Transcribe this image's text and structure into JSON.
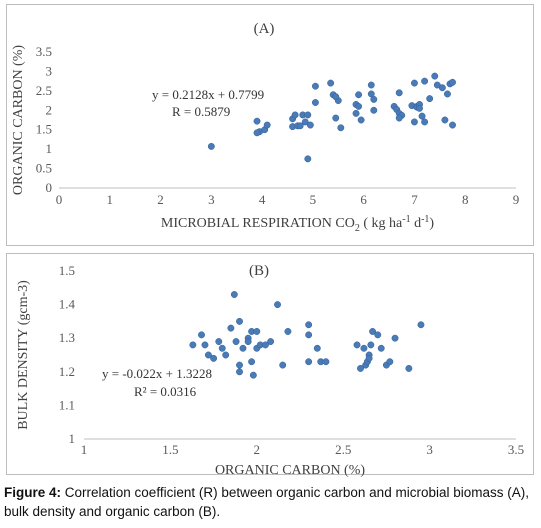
{
  "chart_data": [
    {
      "type": "scatter",
      "title": "(A)",
      "xlabel": "MICROBIAL RESPIRATION CO",
      "xlabel_sub": "2",
      "xlabel_unit": " ( kg ha",
      "xlabel_sup1": "-1",
      "xlabel_mid": " d",
      "xlabel_sup2": "-1",
      "xlabel_end": ")",
      "ylabel": "ORGANIC CARBON (%)",
      "xlim": [
        0,
        9
      ],
      "ylim": [
        0,
        3.5
      ],
      "xticks": [
        "0",
        "1",
        "2",
        "3",
        "4",
        "5",
        "6",
        "7",
        "8",
        "9"
      ],
      "yticks": [
        "0",
        "0.5",
        "1",
        "1.5",
        "2",
        "2.5",
        "3",
        "3.5"
      ],
      "annotations": [
        "y = 0.2128x + 0.7799",
        "R = 0.5879"
      ],
      "marker_color": "#4a7bb7",
      "points": [
        {
          "x": 3.0,
          "y": 1.07
        },
        {
          "x": 3.9,
          "y": 1.72
        },
        {
          "x": 3.95,
          "y": 1.45
        },
        {
          "x": 4.05,
          "y": 1.5
        },
        {
          "x": 4.1,
          "y": 1.62
        },
        {
          "x": 3.9,
          "y": 1.42
        },
        {
          "x": 4.6,
          "y": 1.78
        },
        {
          "x": 4.6,
          "y": 1.58
        },
        {
          "x": 4.65,
          "y": 1.88
        },
        {
          "x": 4.7,
          "y": 1.6
        },
        {
          "x": 4.75,
          "y": 1.6
        },
        {
          "x": 4.8,
          "y": 1.88
        },
        {
          "x": 4.85,
          "y": 1.7
        },
        {
          "x": 4.9,
          "y": 1.88
        },
        {
          "x": 4.95,
          "y": 1.62
        },
        {
          "x": 4.9,
          "y": 0.75
        },
        {
          "x": 5.05,
          "y": 2.2
        },
        {
          "x": 5.05,
          "y": 2.62
        },
        {
          "x": 5.35,
          "y": 2.7
        },
        {
          "x": 5.4,
          "y": 2.4
        },
        {
          "x": 5.45,
          "y": 1.8
        },
        {
          "x": 5.5,
          "y": 2.25
        },
        {
          "x": 5.55,
          "y": 1.55
        },
        {
          "x": 5.85,
          "y": 1.92
        },
        {
          "x": 5.85,
          "y": 2.15
        },
        {
          "x": 5.9,
          "y": 2.1
        },
        {
          "x": 5.9,
          "y": 2.4
        },
        {
          "x": 5.95,
          "y": 1.75
        },
        {
          "x": 6.15,
          "y": 2.65
        },
        {
          "x": 6.15,
          "y": 2.42
        },
        {
          "x": 6.2,
          "y": 2.28
        },
        {
          "x": 6.2,
          "y": 2.0
        },
        {
          "x": 6.6,
          "y": 2.1
        },
        {
          "x": 6.65,
          "y": 2.02
        },
        {
          "x": 6.7,
          "y": 2.45
        },
        {
          "x": 6.7,
          "y": 1.92
        },
        {
          "x": 6.75,
          "y": 1.87
        },
        {
          "x": 6.95,
          "y": 2.12
        },
        {
          "x": 7.0,
          "y": 2.7
        },
        {
          "x": 7.0,
          "y": 1.7
        },
        {
          "x": 7.05,
          "y": 2.1
        },
        {
          "x": 7.05,
          "y": 2.08
        },
        {
          "x": 7.1,
          "y": 2.15
        },
        {
          "x": 7.1,
          "y": 2.05
        },
        {
          "x": 7.15,
          "y": 1.85
        },
        {
          "x": 7.2,
          "y": 2.75
        },
        {
          "x": 7.2,
          "y": 1.7
        },
        {
          "x": 7.3,
          "y": 2.3
        },
        {
          "x": 7.4,
          "y": 2.88
        },
        {
          "x": 7.45,
          "y": 2.65
        },
        {
          "x": 7.55,
          "y": 2.58
        },
        {
          "x": 7.6,
          "y": 1.75
        },
        {
          "x": 7.65,
          "y": 2.42
        },
        {
          "x": 7.7,
          "y": 2.68
        },
        {
          "x": 7.75,
          "y": 2.72
        },
        {
          "x": 7.75,
          "y": 1.62
        },
        {
          "x": 6.7,
          "y": 1.8
        },
        {
          "x": 5.45,
          "y": 2.35
        }
      ]
    },
    {
      "type": "scatter",
      "title": "(B)",
      "xlabel": "ORGANIC CARBON (%)",
      "ylabel": "BULK DENSITY (gcm-3)",
      "xlim": [
        1,
        3.5
      ],
      "ylim": [
        1,
        1.5
      ],
      "xticks": [
        "1",
        "1.5",
        "2",
        "2.5",
        "3",
        "3.5"
      ],
      "yticks": [
        "1",
        "1.1",
        "1.2",
        "1.3",
        "1.4",
        "1.5"
      ],
      "annotations": [
        "y = -0.022x + 1.3228",
        "R² = 0.0316"
      ],
      "marker_color": "#4a7bb7",
      "points": [
        {
          "x": 1.63,
          "y": 1.28
        },
        {
          "x": 1.68,
          "y": 1.31
        },
        {
          "x": 1.7,
          "y": 1.28
        },
        {
          "x": 1.72,
          "y": 1.25
        },
        {
          "x": 1.75,
          "y": 1.24
        },
        {
          "x": 1.78,
          "y": 1.29
        },
        {
          "x": 1.8,
          "y": 1.27
        },
        {
          "x": 1.82,
          "y": 1.25
        },
        {
          "x": 1.85,
          "y": 1.33
        },
        {
          "x": 1.87,
          "y": 1.43
        },
        {
          "x": 1.88,
          "y": 1.29
        },
        {
          "x": 1.9,
          "y": 1.35
        },
        {
          "x": 1.9,
          "y": 1.2
        },
        {
          "x": 1.9,
          "y": 1.22
        },
        {
          "x": 1.92,
          "y": 1.27
        },
        {
          "x": 1.95,
          "y": 1.3
        },
        {
          "x": 1.95,
          "y": 1.29
        },
        {
          "x": 1.97,
          "y": 1.32
        },
        {
          "x": 1.97,
          "y": 1.23
        },
        {
          "x": 1.98,
          "y": 1.19
        },
        {
          "x": 2.0,
          "y": 1.27
        },
        {
          "x": 2.02,
          "y": 1.28
        },
        {
          "x": 2.05,
          "y": 1.28
        },
        {
          "x": 2.08,
          "y": 1.29
        },
        {
          "x": 2.12,
          "y": 1.4
        },
        {
          "x": 2.15,
          "y": 1.22
        },
        {
          "x": 2.18,
          "y": 1.32
        },
        {
          "x": 2.3,
          "y": 1.34
        },
        {
          "x": 2.3,
          "y": 1.31
        },
        {
          "x": 2.3,
          "y": 1.23
        },
        {
          "x": 2.35,
          "y": 1.27
        },
        {
          "x": 2.37,
          "y": 1.23
        },
        {
          "x": 2.4,
          "y": 1.23
        },
        {
          "x": 2.58,
          "y": 1.28
        },
        {
          "x": 2.6,
          "y": 1.21
        },
        {
          "x": 2.62,
          "y": 1.27
        },
        {
          "x": 2.63,
          "y": 1.22
        },
        {
          "x": 2.64,
          "y": 1.23
        },
        {
          "x": 2.65,
          "y": 1.25
        },
        {
          "x": 2.66,
          "y": 1.28
        },
        {
          "x": 2.67,
          "y": 1.32
        },
        {
          "x": 2.7,
          "y": 1.31
        },
        {
          "x": 2.72,
          "y": 1.27
        },
        {
          "x": 2.75,
          "y": 1.22
        },
        {
          "x": 2.77,
          "y": 1.23
        },
        {
          "x": 2.8,
          "y": 1.3
        },
        {
          "x": 2.88,
          "y": 1.21
        },
        {
          "x": 2.95,
          "y": 1.34
        },
        {
          "x": 2.0,
          "y": 1.32
        },
        {
          "x": 2.65,
          "y": 1.24
        }
      ]
    }
  ],
  "caption": {
    "label": "Figure 4:",
    "text": " Correlation coefficient (R) between organic carbon and microbial biomass (A), bulk density and organic carbon (B)."
  }
}
